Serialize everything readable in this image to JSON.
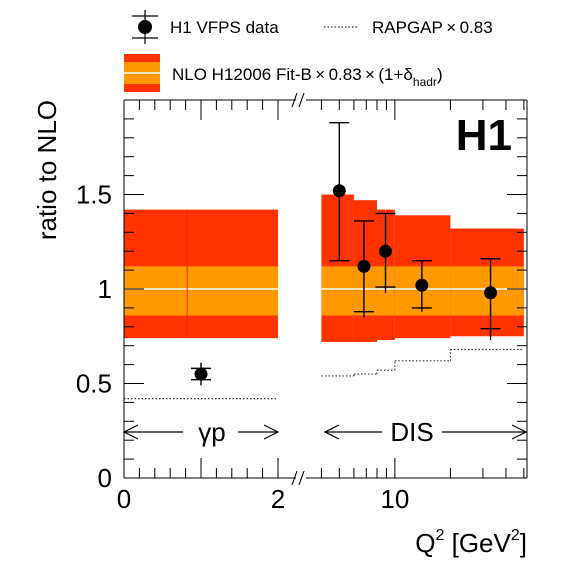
{
  "chart_data": {
    "type": "scatter",
    "experiment_label": "H1",
    "ylabel": "ratio to NLO",
    "xlabel": {
      "main": "Q",
      "sup1": "2",
      "bracket": " [GeV",
      "sup2": "2",
      "end": "]"
    },
    "ylim": [
      0,
      2
    ],
    "y_ticks": [
      "0",
      "0.5",
      "1",
      "1.5"
    ],
    "x_ticks": [
      "0",
      "2",
      "10"
    ],
    "legend": {
      "data_label": "H1 VFPS data",
      "rapgap_label": "RAPGAP × 0.83",
      "nlo_label": {
        "main": "NLO H12006 Fit-B × 0.83 × (1+δ",
        "sub": "hadr",
        "end": ")"
      }
    },
    "regions": {
      "photoproduction": "γp",
      "dis": "DIS"
    },
    "colors": {
      "outer_band": "#ff3300",
      "inner_band": "#ff9900",
      "central_line": "#ffffff",
      "markers": "#000000",
      "rapgap_line": "#333333"
    },
    "photoproduction": {
      "bins": [
        {
          "x_low": 0,
          "x_high": 2
        }
      ],
      "points": [
        {
          "x": 1.0,
          "y": 0.55,
          "stat_err": 0.03,
          "total_err": 0.06
        }
      ],
      "band": {
        "outer_low": 0.74,
        "outer_high": 1.42,
        "inner_low": 0.86,
        "inner_high": 1.12
      },
      "rapgap": [
        0.42
      ]
    },
    "dis": {
      "x_axis": "log",
      "bins": [
        {
          "x_low": 4,
          "x_high": 6
        },
        {
          "x_low": 6,
          "x_high": 8
        },
        {
          "x_low": 8,
          "x_high": 10
        },
        {
          "x_low": 10,
          "x_high": 20
        },
        {
          "x_low": 20,
          "x_high": 50
        }
      ],
      "points": [
        {
          "x": 5.0,
          "y": 1.52,
          "stat_err_up": 0.36,
          "stat_err_down": 0.37,
          "total_err_up": 0.36,
          "total_err_down": 0.37
        },
        {
          "x": 6.8,
          "y": 1.12,
          "stat_err_up": 0.24,
          "stat_err_down": 0.24,
          "total_err_up": 0.24,
          "total_err_down": 0.27
        },
        {
          "x": 8.9,
          "y": 1.2,
          "stat_err_up": 0.2,
          "stat_err_down": 0.19,
          "total_err_up": 0.2,
          "total_err_down": 0.22
        },
        {
          "x": 14.0,
          "y": 1.02,
          "stat_err_up": 0.13,
          "stat_err_down": 0.12,
          "total_err_up": 0.13,
          "total_err_down": 0.14
        },
        {
          "x": 33.0,
          "y": 0.98,
          "stat_err_up": 0.18,
          "stat_err_down": 0.19,
          "total_err_up": 0.18,
          "total_err_down": 0.25
        }
      ],
      "band": [
        {
          "outer_low": 0.72,
          "outer_high": 1.5,
          "inner_low": 0.86,
          "inner_high": 1.12
        },
        {
          "outer_low": 0.72,
          "outer_high": 1.47,
          "inner_low": 0.86,
          "inner_high": 1.12
        },
        {
          "outer_low": 0.73,
          "outer_high": 1.42,
          "inner_low": 0.86,
          "inner_high": 1.12
        },
        {
          "outer_low": 0.74,
          "outer_high": 1.39,
          "inner_low": 0.86,
          "inner_high": 1.12
        },
        {
          "outer_low": 0.75,
          "outer_high": 1.32,
          "inner_low": 0.86,
          "inner_high": 1.12
        }
      ],
      "rapgap": [
        0.54,
        0.55,
        0.57,
        0.62,
        0.68
      ]
    }
  }
}
